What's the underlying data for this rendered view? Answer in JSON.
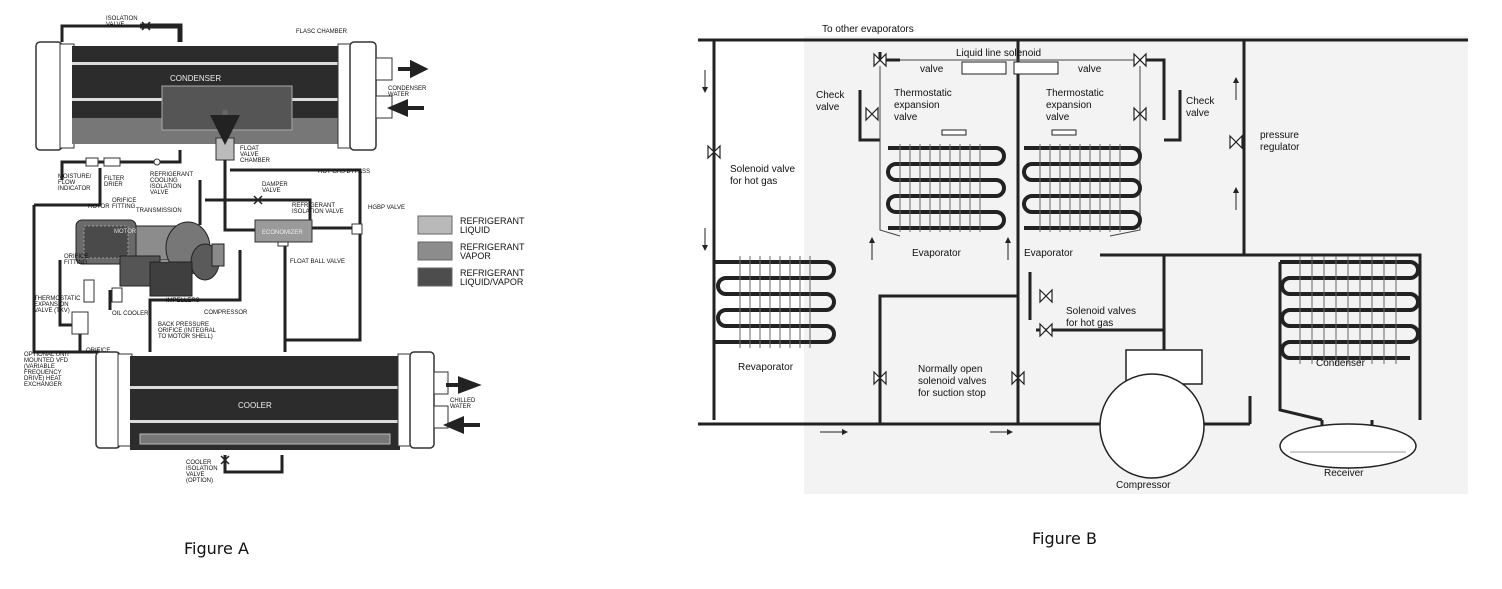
{
  "figure_a": {
    "caption": "Figure A",
    "labels": {
      "isolation_valve": [
        "ISOLATION",
        "VALVE"
      ],
      "flasc_chamber": "FLASC CHAMBER",
      "condenser": "CONDENSER",
      "condenser_water": [
        "CONDENSER",
        "WATER"
      ],
      "float_valve_chamber": [
        "FLOAT",
        "VALVE",
        "CHAMBER"
      ],
      "hot_gas_bypass": "HOT GAS BYPASS",
      "moisture_indicator": [
        "MOISTURE/",
        "FLOW",
        "INDICATOR"
      ],
      "filter_drier": [
        "FILTER",
        "DRIER"
      ],
      "refrigerant_cooling": [
        "REFRIGERANT",
        "COOLING",
        "ISOLATION",
        "VALVE"
      ],
      "damper_valve": [
        "DAMPER",
        "VALVE"
      ],
      "refrigerant_isolation_valve": [
        "REFRIGERANT",
        "ISOLATION VALVE"
      ],
      "hgbp_valve": "HGBP VALVE",
      "rotor": "ROTOR",
      "orifice_fitting_top": [
        "ORIFICE",
        "FITTING"
      ],
      "transmission": "TRANSMISSION",
      "motor": "MOTOR",
      "economizer": "ECONOMIZER",
      "float_ball_valve": "FLOAT BALL VALVE",
      "orifice_fitting_left": [
        "ORIFICE",
        "FITTING"
      ],
      "impellers": "IMPELLERS",
      "compressor": "COMPRESSOR",
      "thermostatic_txv": [
        "THERMOSTATIC",
        "EXPANSION",
        "VALVE (TXV)"
      ],
      "oil_cooler": "OIL COOLER",
      "back_pressure": [
        "BACK PRESSURE",
        "ORIFICE (INTEGRAL",
        "TO MOTOR SHELL)"
      ],
      "optional_vfd": [
        "OPTIONAL UNIT",
        "MOUNTED VFD",
        "(VARIABLE",
        "FREQUENCY",
        "DRIVE) HEAT",
        "EXCHANGER"
      ],
      "orifice": "ORIFICE",
      "cooler": "COOLER",
      "chilled_water": [
        "CHILLED",
        "WATER"
      ],
      "cooler_isolation": [
        "COOLER",
        "ISOLATION",
        "VALVE",
        "(OPTION)"
      ]
    },
    "legend": [
      {
        "label": [
          "REFRIGERANT",
          "LIQUID"
        ],
        "color": "#b9b9b9"
      },
      {
        "label": [
          "REFRIGERANT",
          "VAPOR"
        ],
        "color": "#8c8c8c"
      },
      {
        "label": [
          "REFRIGERANT",
          "LIQUID/VAPOR"
        ],
        "color": "#4d4d4d"
      }
    ]
  },
  "figure_b": {
    "caption": "Figure B",
    "labels": {
      "to_other_evaporators": "To other evaporators",
      "liquid_line_solenoid": "Liquid line solenoid",
      "valve_left": "valve",
      "valve_right": "valve",
      "check_valve_left": [
        "Check",
        "valve"
      ],
      "check_valve_right": [
        "Check",
        "valve"
      ],
      "txv_left": [
        "Thermostatic",
        "expansion",
        "valve"
      ],
      "txv_right": [
        "Thermostatic",
        "expansion",
        "valve"
      ],
      "pressure_regulator": [
        "pressure",
        "regulator"
      ],
      "solenoid_hot_gas": [
        "Solenoid valve",
        "for hot gas"
      ],
      "evaporator_left": "Evaporator",
      "evaporator_right": "Evaporator",
      "solenoid_valves_hot_gas": [
        "Solenoid valves",
        "for hot gas"
      ],
      "revaporator": "Revaporator",
      "normally_open": [
        "Normally open",
        "solenoid valves",
        "for suction stop"
      ],
      "condenser": "Condenser",
      "compressor": "Compressor",
      "receiver": "Receiver"
    }
  }
}
